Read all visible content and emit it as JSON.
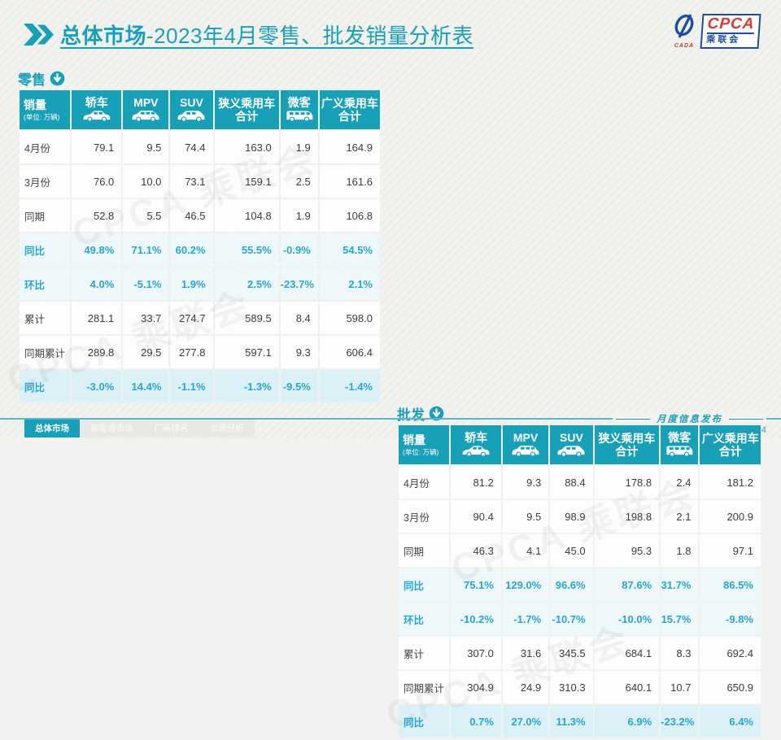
{
  "accent_color": "#17a0b8",
  "percent_color": "#29a5cf",
  "header": {
    "title_bold": "总体市场",
    "title_rest": "-2023年4月零售、批发销量分析表"
  },
  "logo": {
    "en": "CPCA",
    "cn": "乘联会",
    "cada": "CADA"
  },
  "columns": [
    {
      "label": "销量",
      "sub": "(单位: 万辆)",
      "icon": null
    },
    {
      "label": "轿车",
      "icon": "sedan-icon"
    },
    {
      "label": "MPV",
      "icon": "mpv-icon"
    },
    {
      "label": "SUV",
      "icon": "suv-icon"
    },
    {
      "label": "狭义乘用车",
      "label2": "合计",
      "icon": null
    },
    {
      "label": "微客",
      "icon": "van-icon"
    },
    {
      "label": "广义乘用车",
      "label2": "合计",
      "icon": null
    }
  ],
  "tables": [
    {
      "id": "retail",
      "label": "零售",
      "watermark": "CPCA 乘联会",
      "rows": [
        {
          "label": "4月份",
          "type": "num",
          "values": [
            "79.1",
            "9.5",
            "74.4",
            "163.0",
            "1.9",
            "164.9"
          ]
        },
        {
          "label": "3月份",
          "type": "num",
          "values": [
            "76.0",
            "10.0",
            "73.1",
            "159.1",
            "2.5",
            "161.6"
          ]
        },
        {
          "label": "同期",
          "type": "num",
          "values": [
            "52.8",
            "5.5",
            "46.5",
            "104.8",
            "1.9",
            "106.8"
          ]
        },
        {
          "label": "同比",
          "type": "pct",
          "values": [
            "49.8%",
            "71.1%",
            "60.2%",
            "55.5%",
            "-0.9%",
            "54.5%"
          ]
        },
        {
          "label": "环比",
          "type": "pct",
          "values": [
            "4.0%",
            "-5.1%",
            "1.9%",
            "2.5%",
            "-23.7%",
            "2.1%"
          ]
        },
        {
          "label": "累计",
          "type": "num",
          "values": [
            "281.1",
            "33.7",
            "274.7",
            "589.5",
            "8.4",
            "598.0"
          ]
        },
        {
          "label": "同期累计",
          "type": "num",
          "values": [
            "289.8",
            "29.5",
            "277.8",
            "597.1",
            "9.3",
            "606.4"
          ]
        },
        {
          "label": "同比",
          "type": "pct2",
          "values": [
            "-3.0%",
            "14.4%",
            "-1.1%",
            "-1.3%",
            "-9.5%",
            "-1.4%"
          ]
        }
      ]
    },
    {
      "id": "wholesale",
      "label": "批发",
      "watermark": "CPCA 乘联会",
      "rows": [
        {
          "label": "4月份",
          "type": "num",
          "values": [
            "81.2",
            "9.3",
            "88.4",
            "178.8",
            "2.4",
            "181.2"
          ]
        },
        {
          "label": "3月份",
          "type": "num",
          "values": [
            "90.4",
            "9.5",
            "98.9",
            "198.8",
            "2.1",
            "200.9"
          ]
        },
        {
          "label": "同期",
          "type": "num",
          "values": [
            "46.3",
            "4.1",
            "45.0",
            "95.3",
            "1.8",
            "97.1"
          ]
        },
        {
          "label": "同比",
          "type": "pct",
          "values": [
            "75.1%",
            "129.0%",
            "96.6%",
            "87.6%",
            "31.7%",
            "86.5%"
          ]
        },
        {
          "label": "环比",
          "type": "pct",
          "values": [
            "-10.2%",
            "-1.7%",
            "-10.7%",
            "-10.0%",
            "15.7%",
            "-9.8%"
          ]
        },
        {
          "label": "累计",
          "type": "num",
          "values": [
            "307.0",
            "31.6",
            "345.5",
            "684.1",
            "8.3",
            "692.4"
          ]
        },
        {
          "label": "同期累计",
          "type": "num",
          "values": [
            "304.9",
            "24.9",
            "310.3",
            "640.1",
            "10.7",
            "650.9"
          ]
        },
        {
          "label": "同比",
          "type": "pct2",
          "values": [
            "0.7%",
            "27.0%",
            "11.3%",
            "6.9%",
            "-23.2%",
            "6.4%"
          ]
        }
      ]
    }
  ],
  "footer": {
    "tabs": [
      {
        "label": "总体市场",
        "active": true
      },
      {
        "label": "新能源市场",
        "active": false
      },
      {
        "label": "厂商排名",
        "active": false
      },
      {
        "label": "市场分析",
        "active": false
      }
    ],
    "publish_label": "月度信息发布",
    "page_number": "4"
  }
}
